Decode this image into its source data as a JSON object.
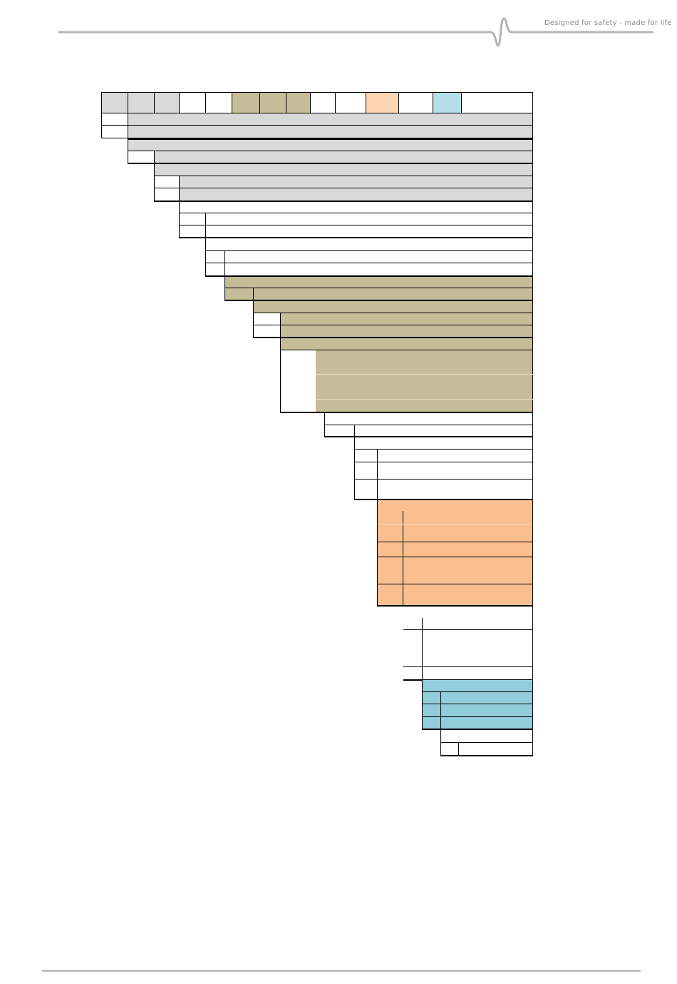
{
  "header": {
    "tagline": "Designed for safety - made for life"
  },
  "colors": {
    "grey": "#d9d9d9",
    "olive": "#c4bd97",
    "peach_header": "#fcd5b5",
    "orange": "#f9bf8f",
    "blue_header": "#b7dee8",
    "blue": "#92cddc",
    "rule": "#c0c0c0"
  }
}
